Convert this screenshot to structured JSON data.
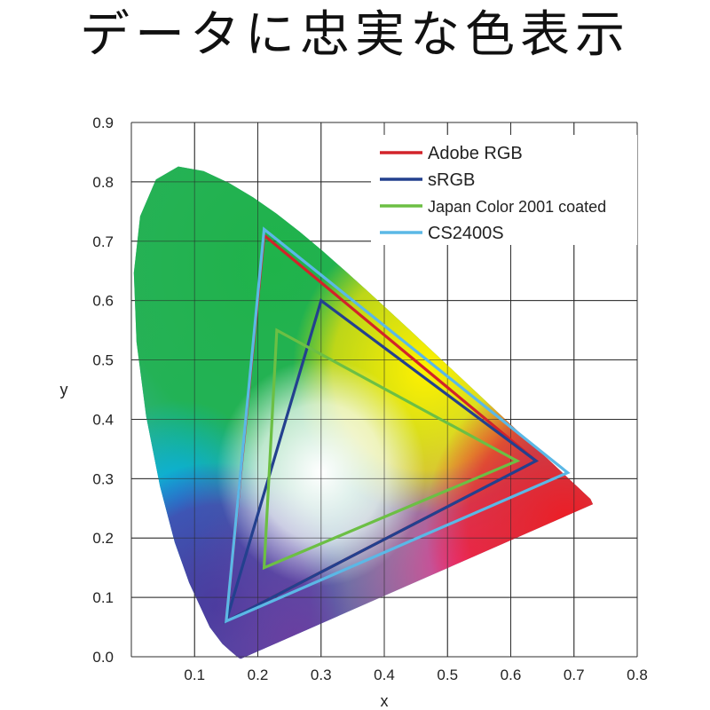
{
  "title": "データに忠実な色表示",
  "chart_data": {
    "type": "line",
    "xlabel": "x",
    "ylabel": "y",
    "xlim": [
      0.0,
      0.8
    ],
    "ylim": [
      0.0,
      0.9
    ],
    "x_ticks": [
      "0.1",
      "0.2",
      "0.3",
      "0.4",
      "0.5",
      "0.6",
      "0.7",
      "0.8"
    ],
    "y_ticks": [
      "0.0",
      "0.1",
      "0.2",
      "0.3",
      "0.4",
      "0.5",
      "0.6",
      "0.7",
      "0.8",
      "0.9"
    ],
    "grid": true,
    "legend_position": "top-right",
    "series": [
      {
        "name": "Adobe RGB",
        "color": "#d2232a",
        "points": [
          [
            0.64,
            0.33
          ],
          [
            0.21,
            0.71
          ],
          [
            0.15,
            0.06
          ]
        ]
      },
      {
        "name": "sRGB",
        "color": "#23408e",
        "points": [
          [
            0.64,
            0.33
          ],
          [
            0.3,
            0.6
          ],
          [
            0.15,
            0.06
          ]
        ]
      },
      {
        "name": "Japan Color 2001 coated",
        "color": "#6cbf44",
        "points": [
          [
            0.61,
            0.33
          ],
          [
            0.23,
            0.55
          ],
          [
            0.21,
            0.15
          ]
        ]
      },
      {
        "name": "CS2400S",
        "color": "#5bb8e6",
        "points": [
          [
            0.69,
            0.31
          ],
          [
            0.21,
            0.72
          ],
          [
            0.15,
            0.06
          ]
        ]
      }
    ],
    "background": "CIE 1931 chromaticity diagram (spectral locus)"
  }
}
